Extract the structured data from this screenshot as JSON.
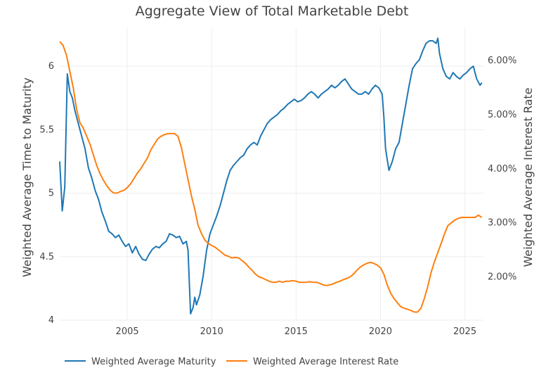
{
  "chart_data": {
    "type": "line",
    "title": "Aggregate View of Total Marketable Debt",
    "xlabel": "",
    "ylabel": "Weighted Average Time to Maturity",
    "y2label": "Weighted Average Interest Rate",
    "xlim": [
      2001.0,
      2026.1
    ],
    "ylim": [
      4.0,
      6.3
    ],
    "y2lim": [
      1.2,
      6.6
    ],
    "x_ticks": [
      2005,
      2010,
      2015,
      2020,
      2025
    ],
    "y_ticks": [
      4,
      4.5,
      5,
      5.5,
      6
    ],
    "y_tick_labels": [
      "4",
      "4.5",
      "5",
      "5.5",
      "6"
    ],
    "y2_ticks": [
      2,
      3,
      4,
      5,
      6
    ],
    "y2_tick_labels": [
      "2.00%",
      "3.00%",
      "4.00%",
      "5.00%",
      "6.00%"
    ],
    "grid": true,
    "legend_position": "bottom-left",
    "series": [
      {
        "name": "Weighted Average Maturity",
        "color": "#1f77b4",
        "axis": "y",
        "points": [
          [
            2001.0,
            5.25
          ],
          [
            2001.15,
            4.86
          ],
          [
            2001.3,
            5.05
          ],
          [
            2001.45,
            5.94
          ],
          [
            2001.6,
            5.8
          ],
          [
            2001.75,
            5.75
          ],
          [
            2001.9,
            5.65
          ],
          [
            2002.1,
            5.55
          ],
          [
            2002.3,
            5.45
          ],
          [
            2002.5,
            5.35
          ],
          [
            2002.7,
            5.2
          ],
          [
            2002.9,
            5.12
          ],
          [
            2003.1,
            5.02
          ],
          [
            2003.3,
            4.95
          ],
          [
            2003.5,
            4.85
          ],
          [
            2003.7,
            4.78
          ],
          [
            2003.9,
            4.7
          ],
          [
            2004.1,
            4.68
          ],
          [
            2004.3,
            4.65
          ],
          [
            2004.5,
            4.67
          ],
          [
            2004.7,
            4.62
          ],
          [
            2004.9,
            4.58
          ],
          [
            2005.1,
            4.6
          ],
          [
            2005.3,
            4.53
          ],
          [
            2005.5,
            4.58
          ],
          [
            2005.7,
            4.52
          ],
          [
            2005.9,
            4.48
          ],
          [
            2006.1,
            4.47
          ],
          [
            2006.3,
            4.52
          ],
          [
            2006.5,
            4.56
          ],
          [
            2006.7,
            4.58
          ],
          [
            2006.9,
            4.57
          ],
          [
            2007.1,
            4.6
          ],
          [
            2007.3,
            4.62
          ],
          [
            2007.5,
            4.68
          ],
          [
            2007.7,
            4.67
          ],
          [
            2007.9,
            4.65
          ],
          [
            2008.1,
            4.66
          ],
          [
            2008.3,
            4.6
          ],
          [
            2008.5,
            4.62
          ],
          [
            2008.6,
            4.55
          ],
          [
            2008.75,
            4.05
          ],
          [
            2008.9,
            4.1
          ],
          [
            2009.0,
            4.18
          ],
          [
            2009.1,
            4.12
          ],
          [
            2009.3,
            4.2
          ],
          [
            2009.5,
            4.35
          ],
          [
            2009.7,
            4.55
          ],
          [
            2009.9,
            4.68
          ],
          [
            2010.1,
            4.75
          ],
          [
            2010.3,
            4.82
          ],
          [
            2010.5,
            4.9
          ],
          [
            2010.7,
            5.0
          ],
          [
            2010.9,
            5.1
          ],
          [
            2011.1,
            5.18
          ],
          [
            2011.3,
            5.22
          ],
          [
            2011.5,
            5.25
          ],
          [
            2011.7,
            5.28
          ],
          [
            2011.9,
            5.3
          ],
          [
            2012.1,
            5.35
          ],
          [
            2012.3,
            5.38
          ],
          [
            2012.5,
            5.4
          ],
          [
            2012.7,
            5.38
          ],
          [
            2012.9,
            5.45
          ],
          [
            2013.1,
            5.5
          ],
          [
            2013.3,
            5.55
          ],
          [
            2013.5,
            5.58
          ],
          [
            2013.7,
            5.6
          ],
          [
            2013.9,
            5.62
          ],
          [
            2014.1,
            5.65
          ],
          [
            2014.3,
            5.67
          ],
          [
            2014.5,
            5.7
          ],
          [
            2014.7,
            5.72
          ],
          [
            2014.9,
            5.74
          ],
          [
            2015.1,
            5.72
          ],
          [
            2015.3,
            5.73
          ],
          [
            2015.5,
            5.75
          ],
          [
            2015.7,
            5.78
          ],
          [
            2015.9,
            5.8
          ],
          [
            2016.1,
            5.78
          ],
          [
            2016.3,
            5.75
          ],
          [
            2016.5,
            5.78
          ],
          [
            2016.7,
            5.8
          ],
          [
            2016.9,
            5.82
          ],
          [
            2017.1,
            5.85
          ],
          [
            2017.3,
            5.83
          ],
          [
            2017.5,
            5.85
          ],
          [
            2017.7,
            5.88
          ],
          [
            2017.9,
            5.9
          ],
          [
            2018.1,
            5.86
          ],
          [
            2018.3,
            5.82
          ],
          [
            2018.5,
            5.8
          ],
          [
            2018.7,
            5.78
          ],
          [
            2018.9,
            5.78
          ],
          [
            2019.1,
            5.8
          ],
          [
            2019.3,
            5.78
          ],
          [
            2019.5,
            5.82
          ],
          [
            2019.7,
            5.85
          ],
          [
            2019.9,
            5.83
          ],
          [
            2020.1,
            5.78
          ],
          [
            2020.2,
            5.6
          ],
          [
            2020.3,
            5.35
          ],
          [
            2020.5,
            5.18
          ],
          [
            2020.7,
            5.25
          ],
          [
            2020.9,
            5.35
          ],
          [
            2021.1,
            5.4
          ],
          [
            2021.3,
            5.55
          ],
          [
            2021.5,
            5.7
          ],
          [
            2021.7,
            5.85
          ],
          [
            2021.9,
            5.98
          ],
          [
            2022.1,
            6.02
          ],
          [
            2022.3,
            6.05
          ],
          [
            2022.5,
            6.12
          ],
          [
            2022.7,
            6.18
          ],
          [
            2022.9,
            6.2
          ],
          [
            2023.1,
            6.2
          ],
          [
            2023.3,
            6.18
          ],
          [
            2023.4,
            6.22
          ],
          [
            2023.5,
            6.1
          ],
          [
            2023.7,
            5.98
          ],
          [
            2023.9,
            5.92
          ],
          [
            2024.1,
            5.9
          ],
          [
            2024.3,
            5.95
          ],
          [
            2024.5,
            5.92
          ],
          [
            2024.7,
            5.9
          ],
          [
            2024.9,
            5.93
          ],
          [
            2025.1,
            5.95
          ],
          [
            2025.3,
            5.98
          ],
          [
            2025.5,
            6.0
          ],
          [
            2025.7,
            5.9
          ],
          [
            2025.9,
            5.85
          ],
          [
            2026.0,
            5.87
          ]
        ]
      },
      {
        "name": "Weighted Average Interest Rate",
        "color": "#ff7f0e",
        "axis": "y2",
        "points": [
          [
            2001.0,
            6.35
          ],
          [
            2001.2,
            6.28
          ],
          [
            2001.4,
            6.1
          ],
          [
            2001.6,
            5.8
          ],
          [
            2001.8,
            5.5
          ],
          [
            2002.0,
            5.1
          ],
          [
            2002.2,
            4.85
          ],
          [
            2002.4,
            4.75
          ],
          [
            2002.6,
            4.6
          ],
          [
            2002.8,
            4.45
          ],
          [
            2003.0,
            4.25
          ],
          [
            2003.2,
            4.05
          ],
          [
            2003.4,
            3.9
          ],
          [
            2003.6,
            3.78
          ],
          [
            2003.8,
            3.68
          ],
          [
            2004.0,
            3.6
          ],
          [
            2004.2,
            3.55
          ],
          [
            2004.4,
            3.55
          ],
          [
            2004.6,
            3.58
          ],
          [
            2004.8,
            3.6
          ],
          [
            2005.0,
            3.65
          ],
          [
            2005.2,
            3.72
          ],
          [
            2005.4,
            3.82
          ],
          [
            2005.6,
            3.92
          ],
          [
            2005.8,
            4.0
          ],
          [
            2006.0,
            4.1
          ],
          [
            2006.2,
            4.2
          ],
          [
            2006.4,
            4.35
          ],
          [
            2006.6,
            4.45
          ],
          [
            2006.8,
            4.55
          ],
          [
            2007.0,
            4.6
          ],
          [
            2007.2,
            4.63
          ],
          [
            2007.4,
            4.65
          ],
          [
            2007.6,
            4.65
          ],
          [
            2007.8,
            4.65
          ],
          [
            2008.0,
            4.6
          ],
          [
            2008.2,
            4.4
          ],
          [
            2008.4,
            4.1
          ],
          [
            2008.6,
            3.8
          ],
          [
            2008.8,
            3.5
          ],
          [
            2009.0,
            3.25
          ],
          [
            2009.2,
            2.95
          ],
          [
            2009.4,
            2.8
          ],
          [
            2009.6,
            2.68
          ],
          [
            2009.8,
            2.62
          ],
          [
            2010.0,
            2.58
          ],
          [
            2010.2,
            2.55
          ],
          [
            2010.4,
            2.5
          ],
          [
            2010.6,
            2.45
          ],
          [
            2010.8,
            2.4
          ],
          [
            2011.0,
            2.38
          ],
          [
            2011.2,
            2.35
          ],
          [
            2011.4,
            2.36
          ],
          [
            2011.6,
            2.35
          ],
          [
            2011.8,
            2.3
          ],
          [
            2012.0,
            2.25
          ],
          [
            2012.2,
            2.18
          ],
          [
            2012.4,
            2.12
          ],
          [
            2012.6,
            2.05
          ],
          [
            2012.8,
            2.0
          ],
          [
            2013.0,
            1.98
          ],
          [
            2013.2,
            1.95
          ],
          [
            2013.4,
            1.92
          ],
          [
            2013.6,
            1.9
          ],
          [
            2013.8,
            1.9
          ],
          [
            2014.0,
            1.92
          ],
          [
            2014.2,
            1.9
          ],
          [
            2014.4,
            1.92
          ],
          [
            2014.6,
            1.92
          ],
          [
            2014.8,
            1.93
          ],
          [
            2015.0,
            1.92
          ],
          [
            2015.2,
            1.9
          ],
          [
            2015.4,
            1.9
          ],
          [
            2015.6,
            1.9
          ],
          [
            2015.8,
            1.91
          ],
          [
            2016.0,
            1.9
          ],
          [
            2016.2,
            1.9
          ],
          [
            2016.4,
            1.88
          ],
          [
            2016.6,
            1.85
          ],
          [
            2016.8,
            1.84
          ],
          [
            2017.0,
            1.85
          ],
          [
            2017.2,
            1.87
          ],
          [
            2017.4,
            1.9
          ],
          [
            2017.6,
            1.92
          ],
          [
            2017.8,
            1.95
          ],
          [
            2018.0,
            1.97
          ],
          [
            2018.2,
            2.0
          ],
          [
            2018.4,
            2.05
          ],
          [
            2018.6,
            2.12
          ],
          [
            2018.8,
            2.18
          ],
          [
            2019.0,
            2.22
          ],
          [
            2019.2,
            2.25
          ],
          [
            2019.4,
            2.27
          ],
          [
            2019.6,
            2.25
          ],
          [
            2019.8,
            2.22
          ],
          [
            2020.0,
            2.17
          ],
          [
            2020.2,
            2.05
          ],
          [
            2020.4,
            1.85
          ],
          [
            2020.6,
            1.7
          ],
          [
            2020.8,
            1.6
          ],
          [
            2021.0,
            1.52
          ],
          [
            2021.2,
            1.45
          ],
          [
            2021.4,
            1.42
          ],
          [
            2021.6,
            1.4
          ],
          [
            2021.8,
            1.38
          ],
          [
            2022.0,
            1.35
          ],
          [
            2022.2,
            1.35
          ],
          [
            2022.4,
            1.42
          ],
          [
            2022.6,
            1.6
          ],
          [
            2022.8,
            1.82
          ],
          [
            2023.0,
            2.08
          ],
          [
            2023.2,
            2.28
          ],
          [
            2023.4,
            2.45
          ],
          [
            2023.6,
            2.62
          ],
          [
            2023.8,
            2.8
          ],
          [
            2024.0,
            2.95
          ],
          [
            2024.2,
            3.0
          ],
          [
            2024.4,
            3.05
          ],
          [
            2024.6,
            3.08
          ],
          [
            2024.8,
            3.1
          ],
          [
            2025.0,
            3.1
          ],
          [
            2025.2,
            3.1
          ],
          [
            2025.4,
            3.1
          ],
          [
            2025.6,
            3.1
          ],
          [
            2025.8,
            3.14
          ],
          [
            2026.0,
            3.1
          ]
        ]
      }
    ]
  }
}
